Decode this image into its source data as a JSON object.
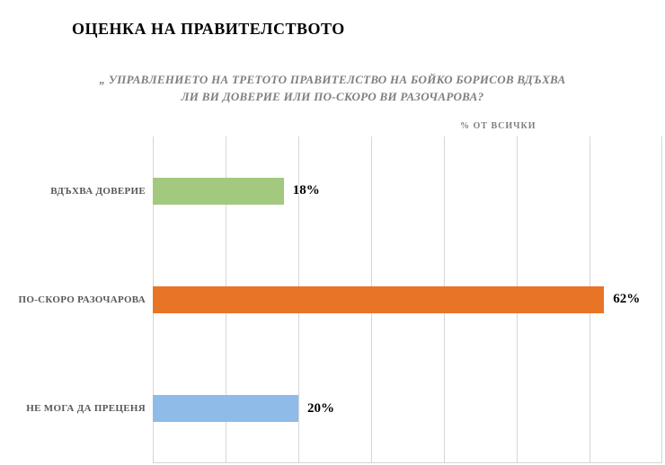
{
  "page": {
    "title": "ОЦЕНКА НА ПРАВИТЕЛСТВОТО"
  },
  "chart_data": {
    "type": "bar",
    "orientation": "horizontal",
    "title": "ОЦЕНКА НА ПРАВИТЕЛСТВОТО",
    "subtitle_lines": [
      "„ УПРАВЛЕНИЕТО НА ТРЕТОТО  ПРАВИТЕЛСТВО НА БОЙКО БОРИСОВ ВДЪХВА",
      "ЛИ ВИ ДОВЕРИЕ ИЛИ ПО-СКОРО ВИ РАЗОЧАРОВА?"
    ],
    "unit_label": "% ОТ ВСИЧКИ",
    "categories": [
      "ВДЪХВА ДОВЕРИЕ",
      "ПО-СКОРО РАЗОЧАРОВА",
      "НЕ МОГА ДА ПРЕЦЕНЯ"
    ],
    "values": [
      18,
      62,
      20
    ],
    "value_labels": [
      "18%",
      "62%",
      "20%"
    ],
    "bar_colors": [
      "#a2c97e",
      "#e87426",
      "#8fbbe8"
    ],
    "xlabel": "",
    "ylabel": "",
    "xlim": [
      0,
      70
    ],
    "gridline_step": 10,
    "grid": true,
    "legend": false,
    "gridline_color": "#d6d6d6"
  }
}
